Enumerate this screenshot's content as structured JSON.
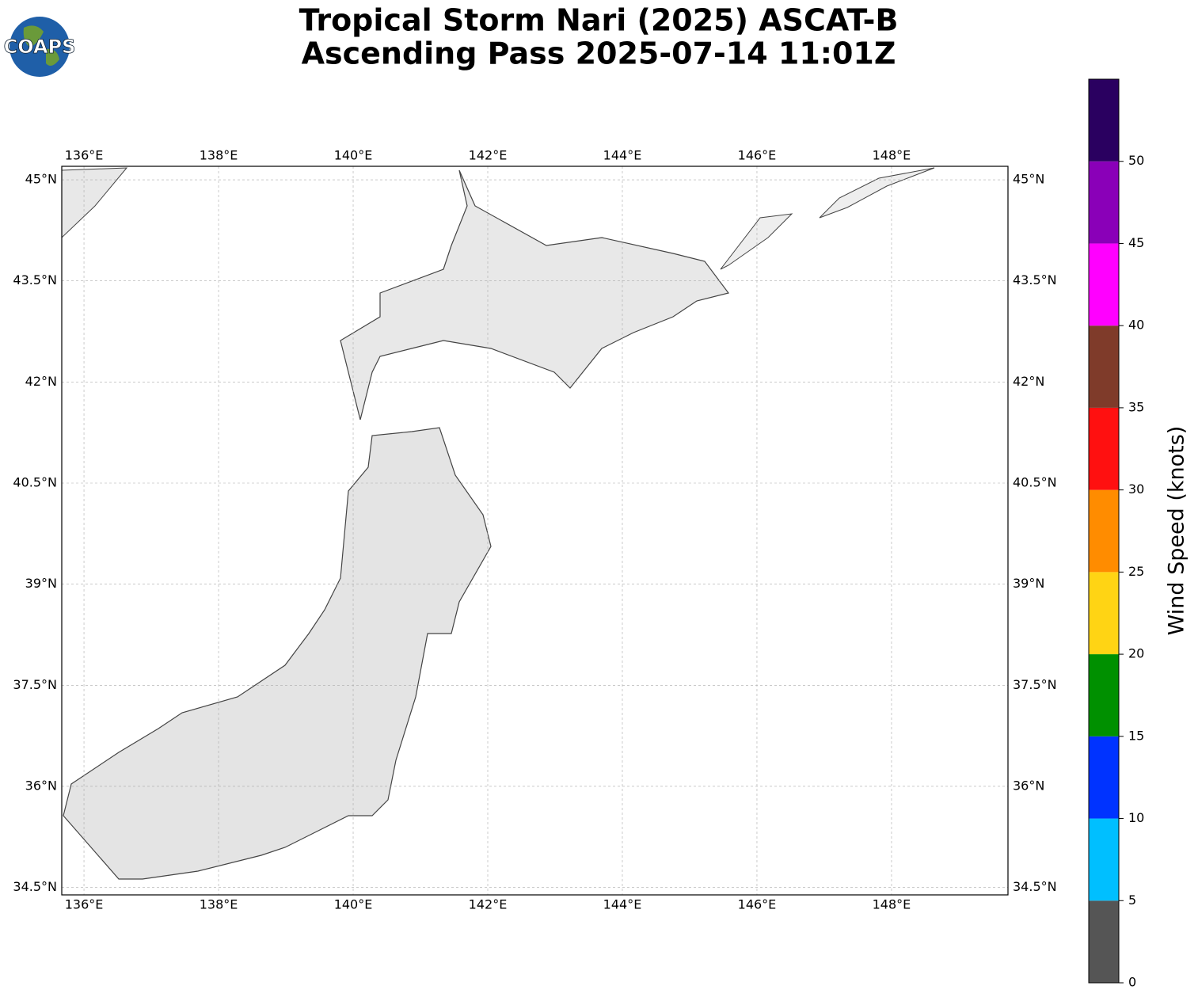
{
  "chart_data": {
    "type": "map",
    "title": "Tropical Storm Nari (2025) ASCAT-B",
    "subtitle": "Ascending Pass 2025-07-14 11:01Z",
    "logo": "COAPS",
    "xlim": [
      135.67,
      149.73
    ],
    "ylim": [
      34.39,
      45.2
    ],
    "xticks": [
      {
        "value": 136,
        "label": "136°E"
      },
      {
        "value": 138,
        "label": "138°E"
      },
      {
        "value": 140,
        "label": "140°E"
      },
      {
        "value": 142,
        "label": "142°E"
      },
      {
        "value": 144,
        "label": "144°E"
      },
      {
        "value": 146,
        "label": "146°E"
      },
      {
        "value": 148,
        "label": "148°E"
      }
    ],
    "yticks": [
      {
        "value": 34.5,
        "label": "34.5°N"
      },
      {
        "value": 36,
        "label": "36°N"
      },
      {
        "value": 37.5,
        "label": "37.5°N"
      },
      {
        "value": 39,
        "label": "39°N"
      },
      {
        "value": 40.5,
        "label": "40.5°N"
      },
      {
        "value": 42,
        "label": "42°N"
      },
      {
        "value": 43.5,
        "label": "43.5°N"
      },
      {
        "value": 45,
        "label": "45°N"
      }
    ],
    "grid": true,
    "colorbar": {
      "label": "Wind Speed (knots)",
      "lim": [
        0,
        55
      ],
      "ticks": [
        0,
        5,
        10,
        15,
        20,
        25,
        30,
        35,
        40,
        45,
        50
      ],
      "bounds": [
        0,
        5,
        10,
        15,
        20,
        25,
        30,
        35,
        40,
        45,
        50,
        55
      ],
      "colors": [
        "#555555",
        "#00bfff",
        "#0033ff",
        "#009000",
        "#ffd414",
        "#ff8c00",
        "#ff1010",
        "#7f3b2a",
        "#ff00ff",
        "#8a00b8",
        "#2a0060"
      ]
    }
  }
}
